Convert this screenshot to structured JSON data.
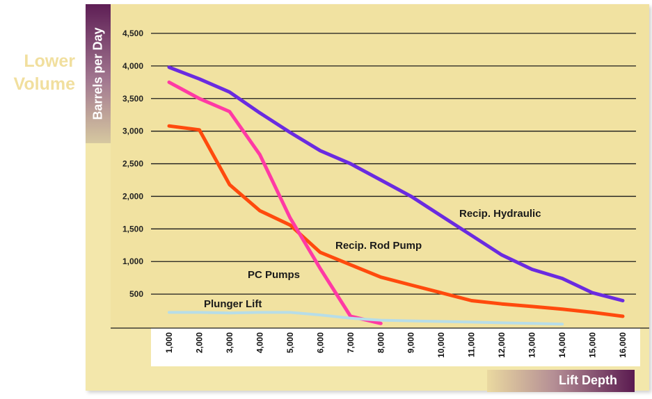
{
  "side_label": {
    "line1": "Lower",
    "line2": "Volume"
  },
  "chart_data": {
    "type": "line",
    "title": "",
    "xlabel": "Lift Depth",
    "ylabel": "Barrels per Day",
    "xlim": [
      1000,
      16000
    ],
    "ylim": [
      0,
      4500
    ],
    "x_ticks": [
      "1,000",
      "2,000",
      "3,000",
      "4,000",
      "5,000",
      "6,000",
      "7,000",
      "8,000",
      "9,000",
      "10,000",
      "11,000",
      "12,000",
      "13,000",
      "14,000",
      "15,000",
      "16,000"
    ],
    "y_ticks": [
      "500",
      "1,000",
      "1,500",
      "2,000",
      "2,500",
      "3,000",
      "3,500",
      "4,000",
      "4,500"
    ],
    "series": [
      {
        "name": "Recip. Hydraulic",
        "color": "#6a2be0",
        "points": [
          [
            1000,
            3980
          ],
          [
            2000,
            3800
          ],
          [
            3000,
            3600
          ],
          [
            4000,
            3280
          ],
          [
            5000,
            2980
          ],
          [
            6000,
            2700
          ],
          [
            7000,
            2500
          ],
          [
            8000,
            2250
          ],
          [
            9000,
            2000
          ],
          [
            10000,
            1700
          ],
          [
            11000,
            1400
          ],
          [
            12000,
            1100
          ],
          [
            13000,
            880
          ],
          [
            14000,
            740
          ],
          [
            15000,
            520
          ],
          [
            16000,
            400
          ]
        ]
      },
      {
        "name": "Recip. Rod Pump",
        "color": "#ff4a0d",
        "points": [
          [
            1000,
            3080
          ],
          [
            2000,
            3020
          ],
          [
            3000,
            2180
          ],
          [
            4000,
            1780
          ],
          [
            5000,
            1560
          ],
          [
            6000,
            1140
          ],
          [
            7000,
            950
          ],
          [
            8000,
            760
          ],
          [
            9000,
            640
          ],
          [
            10000,
            520
          ],
          [
            11000,
            400
          ],
          [
            12000,
            350
          ],
          [
            13000,
            310
          ],
          [
            14000,
            270
          ],
          [
            15000,
            220
          ],
          [
            16000,
            160
          ]
        ]
      },
      {
        "name": "PC Pumps",
        "color": "#ff3aa4",
        "points": [
          [
            1000,
            3750
          ],
          [
            2000,
            3500
          ],
          [
            3000,
            3300
          ],
          [
            4000,
            2640
          ],
          [
            5000,
            1670
          ],
          [
            6000,
            890
          ],
          [
            7000,
            160
          ],
          [
            8000,
            50
          ]
        ]
      },
      {
        "name": "Plunger Lift",
        "color": "#b7dde8",
        "points": [
          [
            1000,
            220
          ],
          [
            2000,
            220
          ],
          [
            3000,
            210
          ],
          [
            4000,
            220
          ],
          [
            5000,
            220
          ],
          [
            6000,
            180
          ],
          [
            7000,
            130
          ],
          [
            8000,
            100
          ],
          [
            9000,
            90
          ],
          [
            10000,
            80
          ],
          [
            11000,
            70
          ],
          [
            12000,
            60
          ],
          [
            13000,
            50
          ],
          [
            14000,
            40
          ]
        ]
      }
    ]
  }
}
